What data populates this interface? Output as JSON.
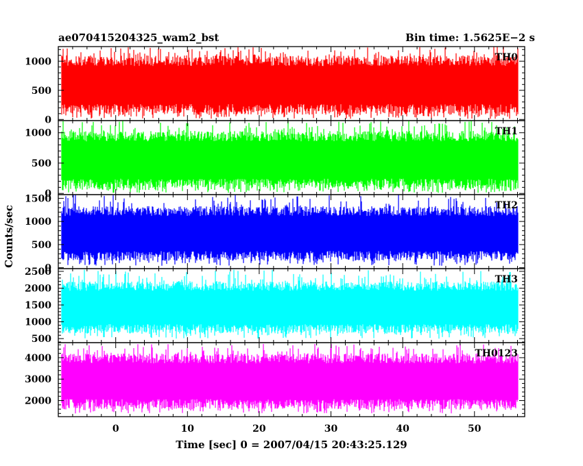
{
  "header": {
    "title": "ae070415204325_wam2_bst",
    "bin_time": "Bin time: 1.5625E−2 s"
  },
  "chart_data": {
    "type": "line",
    "xlabel": "Time [sec] 0 = 2007/04/15 20:43:25.129",
    "ylabel": "Counts/sec",
    "xlim": [
      -8,
      57
    ],
    "x_ticks": [
      0,
      10,
      20,
      30,
      40,
      50
    ],
    "x_tick_labels": [
      "0",
      "10",
      "20",
      "30",
      "40",
      "50"
    ],
    "data_range": [
      -7.5,
      56
    ],
    "panels": [
      {
        "name": "TH0",
        "color": "#ff0000",
        "ylim": [
          -20,
          1250
        ],
        "yticks": [
          0,
          500,
          1000
        ],
        "ytick_labels": [
          "0",
          "500",
          "1000"
        ],
        "typical_range": [
          80,
          1100
        ],
        "extreme_range": [
          10,
          1250
        ]
      },
      {
        "name": "TH1",
        "color": "#00ff00",
        "ylim": [
          -20,
          1200
        ],
        "yticks": [
          0,
          500,
          1000
        ],
        "ytick_labels": [
          "0",
          "500",
          "1000"
        ],
        "typical_range": [
          70,
          1030
        ],
        "extreme_range": [
          10,
          1200
        ]
      },
      {
        "name": "TH2",
        "color": "#0000ff",
        "ylim": [
          -20,
          1580
        ],
        "yticks": [
          0,
          500,
          1000,
          1500
        ],
        "ytick_labels": [
          "0",
          "500",
          "1000",
          "1500"
        ],
        "typical_range": [
          150,
          1330
        ],
        "extreme_range": [
          40,
          1580
        ]
      },
      {
        "name": "TH3",
        "color": "#00ffff",
        "ylim": [
          380,
          2580
        ],
        "yticks": [
          500,
          1000,
          1500,
          2000,
          2500
        ],
        "ytick_labels": [
          "500",
          "1000",
          "1500",
          "2000",
          "2500"
        ],
        "typical_range": [
          650,
          2200
        ],
        "extreme_range": [
          500,
          2550
        ]
      },
      {
        "name": "TH0123",
        "color": "#ff00ff",
        "ylim": [
          1250,
          4700
        ],
        "yticks": [
          2000,
          3000,
          4000
        ],
        "ytick_labels": [
          "2000",
          "3000",
          "4000"
        ],
        "typical_range": [
          1600,
          4200
        ],
        "extreme_range": [
          1400,
          4650
        ]
      }
    ]
  }
}
